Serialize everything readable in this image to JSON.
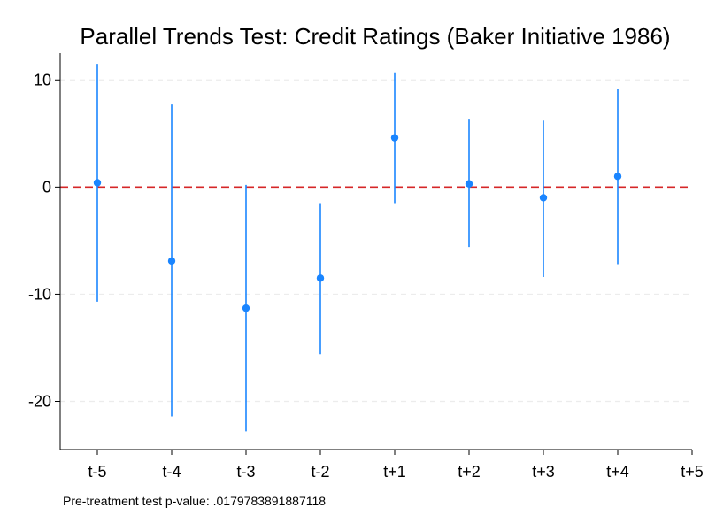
{
  "chart_data": {
    "type": "scatter",
    "title": "Parallel Trends Test: Credit Ratings (Baker Initiative 1986)",
    "xlabel": "",
    "ylabel": "",
    "categories": [
      "t-5",
      "t-4",
      "t-3",
      "t-2",
      "t+1",
      "t+2",
      "t+3",
      "t+4",
      "t+5"
    ],
    "series": [
      {
        "estimates": [
          0.4,
          -6.9,
          -11.3,
          -8.5,
          4.6,
          0.3,
          -1.0,
          1.0,
          null
        ],
        "ci_lower": [
          -10.7,
          -21.4,
          -22.8,
          -15.6,
          -1.5,
          -5.6,
          -8.4,
          -7.2,
          null
        ],
        "ci_upper": [
          11.5,
          7.7,
          0.2,
          -1.5,
          10.7,
          6.3,
          6.2,
          9.2,
          null
        ]
      }
    ],
    "y_ticks": [
      10,
      0,
      -10,
      -20
    ],
    "ylim": [
      -24.5,
      12.5
    ],
    "reference_line": 0,
    "note": "Pre-treatment test p-value: .0179783891887118",
    "grid": true,
    "colors": {
      "marker": "#1a85ff",
      "ci": "#1a85ff",
      "reference": "#d62728",
      "grid": "#ececec",
      "axis": "#000000"
    }
  }
}
